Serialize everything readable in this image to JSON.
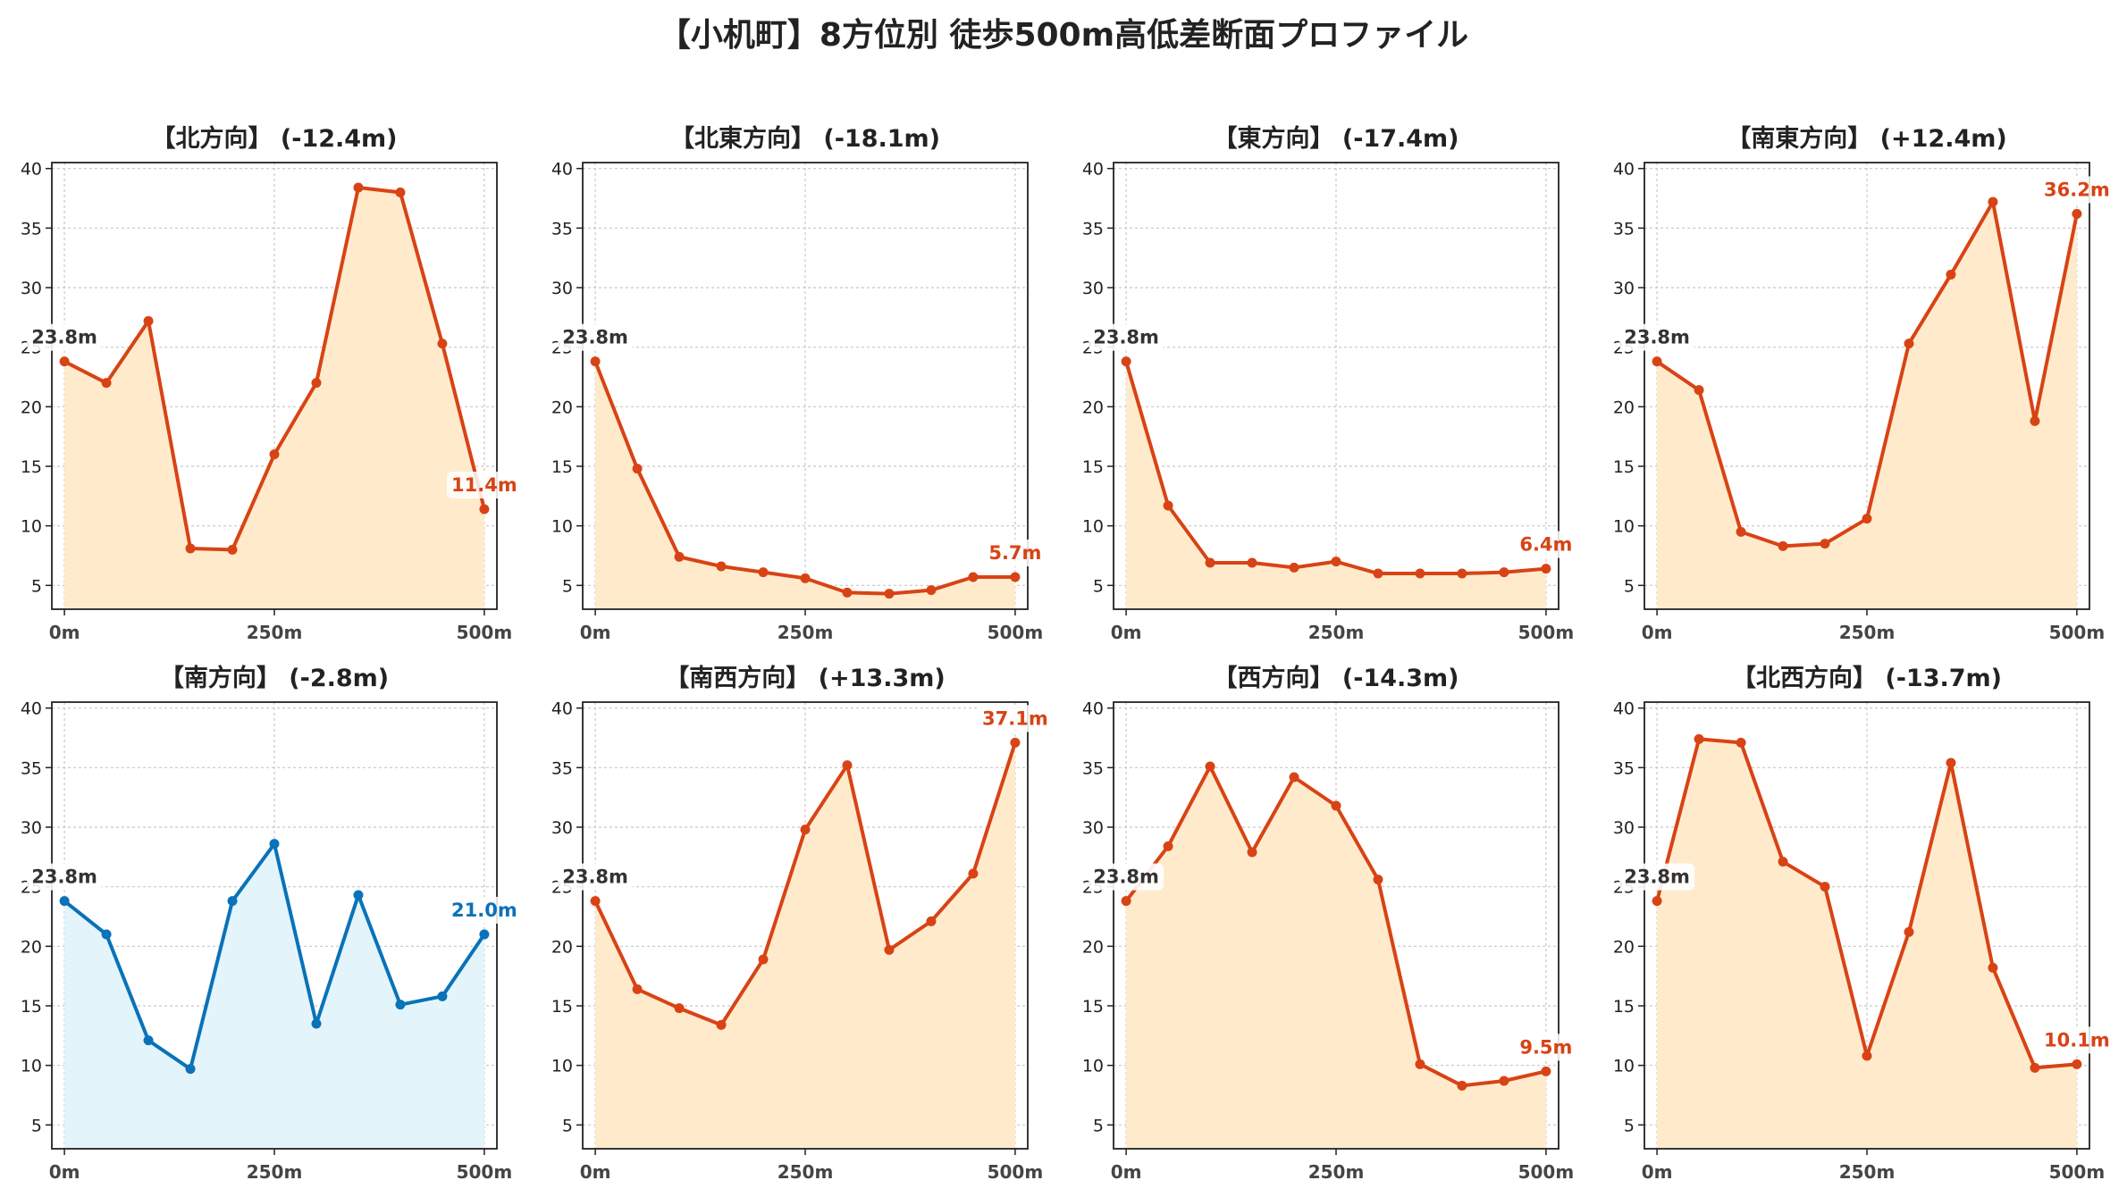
{
  "title": "【小机町】8方位別 徒歩500m高低差断面プロファイル",
  "colors": {
    "down_line": "#d84315",
    "down_fill": "#ffebcc",
    "up_line": "#0a72b8",
    "up_fill": "#e3f4fb",
    "start_label": "#333333",
    "grid": "#c8c8c8"
  },
  "chart_data": [
    {
      "type": "area",
      "title": "【北方向】 (-12.4m)",
      "x": [
        0,
        50,
        100,
        150,
        200,
        250,
        300,
        350,
        400,
        450,
        500
      ],
      "values": [
        23.8,
        22.0,
        27.2,
        8.1,
        8.0,
        16.0,
        22.0,
        38.4,
        38.0,
        25.3,
        11.4
      ],
      "ylim": [
        3,
        40.5
      ],
      "xlim": [
        -15,
        515
      ],
      "yticks": [
        5,
        10,
        15,
        20,
        25,
        30,
        35,
        40
      ],
      "xtick_labels": [
        "0m",
        "250m",
        "500m"
      ],
      "start_label": "23.8m",
      "end_label": "11.4m",
      "line_color": "#d84315",
      "fill_color": "#ffebcc",
      "grid": true
    },
    {
      "type": "area",
      "title": "【北東方向】 (-18.1m)",
      "x": [
        0,
        50,
        100,
        150,
        200,
        250,
        300,
        350,
        400,
        450,
        500
      ],
      "values": [
        23.8,
        14.8,
        7.4,
        6.6,
        6.1,
        5.6,
        4.4,
        4.3,
        4.6,
        5.7,
        5.7
      ],
      "ylim": [
        3,
        40.5
      ],
      "xlim": [
        -15,
        515
      ],
      "yticks": [
        5,
        10,
        15,
        20,
        25,
        30,
        35,
        40
      ],
      "xtick_labels": [
        "0m",
        "250m",
        "500m"
      ],
      "start_label": "23.8m",
      "end_label": "5.7m",
      "line_color": "#d84315",
      "fill_color": "#ffebcc",
      "grid": true
    },
    {
      "type": "area",
      "title": "【東方向】 (-17.4m)",
      "x": [
        0,
        50,
        100,
        150,
        200,
        250,
        300,
        350,
        400,
        450,
        500
      ],
      "values": [
        23.8,
        11.7,
        6.9,
        6.9,
        6.5,
        7.0,
        6.0,
        6.0,
        6.0,
        6.1,
        6.4
      ],
      "ylim": [
        3,
        40.5
      ],
      "xlim": [
        -15,
        515
      ],
      "yticks": [
        5,
        10,
        15,
        20,
        25,
        30,
        35,
        40
      ],
      "xtick_labels": [
        "0m",
        "250m",
        "500m"
      ],
      "start_label": "23.8m",
      "end_label": "6.4m",
      "line_color": "#d84315",
      "fill_color": "#ffebcc",
      "grid": true
    },
    {
      "type": "area",
      "title": "【南東方向】 (+12.4m)",
      "x": [
        0,
        50,
        100,
        150,
        200,
        250,
        300,
        350,
        400,
        450,
        500
      ],
      "values": [
        23.8,
        21.4,
        9.5,
        8.3,
        8.5,
        10.6,
        25.3,
        31.1,
        37.2,
        18.8,
        36.2
      ],
      "ylim": [
        3,
        40.5
      ],
      "xlim": [
        -15,
        515
      ],
      "yticks": [
        5,
        10,
        15,
        20,
        25,
        30,
        35,
        40
      ],
      "xtick_labels": [
        "0m",
        "250m",
        "500m"
      ],
      "start_label": "23.8m",
      "end_label": "36.2m",
      "line_color": "#d84315",
      "fill_color": "#ffebcc",
      "grid": true
    },
    {
      "type": "area",
      "title": "【南方向】 (-2.8m)",
      "x": [
        0,
        50,
        100,
        150,
        200,
        250,
        300,
        350,
        400,
        450,
        500
      ],
      "values": [
        23.8,
        21.0,
        12.1,
        9.7,
        23.8,
        28.6,
        13.5,
        24.3,
        15.1,
        15.8,
        21.0
      ],
      "ylim": [
        3,
        40.5
      ],
      "xlim": [
        -15,
        515
      ],
      "yticks": [
        5,
        10,
        15,
        20,
        25,
        30,
        35,
        40
      ],
      "xtick_labels": [
        "0m",
        "250m",
        "500m"
      ],
      "start_label": "23.8m",
      "end_label": "21.0m",
      "line_color": "#0a72b8",
      "fill_color": "#e3f4fb",
      "grid": true
    },
    {
      "type": "area",
      "title": "【南西方向】 (+13.3m)",
      "x": [
        0,
        50,
        100,
        150,
        200,
        250,
        300,
        350,
        400,
        450,
        500
      ],
      "values": [
        23.8,
        16.4,
        14.8,
        13.4,
        18.9,
        29.8,
        35.2,
        19.7,
        22.1,
        26.1,
        37.1
      ],
      "ylim": [
        3,
        40.5
      ],
      "xlim": [
        -15,
        515
      ],
      "yticks": [
        5,
        10,
        15,
        20,
        25,
        30,
        35,
        40
      ],
      "xtick_labels": [
        "0m",
        "250m",
        "500m"
      ],
      "start_label": "23.8m",
      "end_label": "37.1m",
      "line_color": "#d84315",
      "fill_color": "#ffebcc",
      "grid": true
    },
    {
      "type": "area",
      "title": "【西方向】 (-14.3m)",
      "x": [
        0,
        50,
        100,
        150,
        200,
        250,
        300,
        350,
        400,
        450,
        500
      ],
      "values": [
        23.8,
        28.4,
        35.1,
        27.9,
        34.2,
        31.8,
        25.6,
        10.1,
        8.3,
        8.7,
        9.5
      ],
      "ylim": [
        3,
        40.5
      ],
      "xlim": [
        -15,
        515
      ],
      "yticks": [
        5,
        10,
        15,
        20,
        25,
        30,
        35,
        40
      ],
      "xtick_labels": [
        "0m",
        "250m",
        "500m"
      ],
      "start_label": "23.8m",
      "end_label": "9.5m",
      "line_color": "#d84315",
      "fill_color": "#ffebcc",
      "grid": true
    },
    {
      "type": "area",
      "title": "【北西方向】 (-13.7m)",
      "x": [
        0,
        50,
        100,
        150,
        200,
        250,
        300,
        350,
        400,
        450,
        500
      ],
      "values": [
        23.8,
        37.4,
        37.1,
        27.1,
        25.0,
        10.8,
        21.2,
        35.4,
        18.2,
        9.8,
        10.1
      ],
      "ylim": [
        3,
        40.5
      ],
      "xlim": [
        -15,
        515
      ],
      "yticks": [
        5,
        10,
        15,
        20,
        25,
        30,
        35,
        40
      ],
      "xtick_labels": [
        "0m",
        "250m",
        "500m"
      ],
      "start_label": "23.8m",
      "end_label": "10.1m",
      "line_color": "#d84315",
      "fill_color": "#ffebcc",
      "grid": true
    }
  ]
}
